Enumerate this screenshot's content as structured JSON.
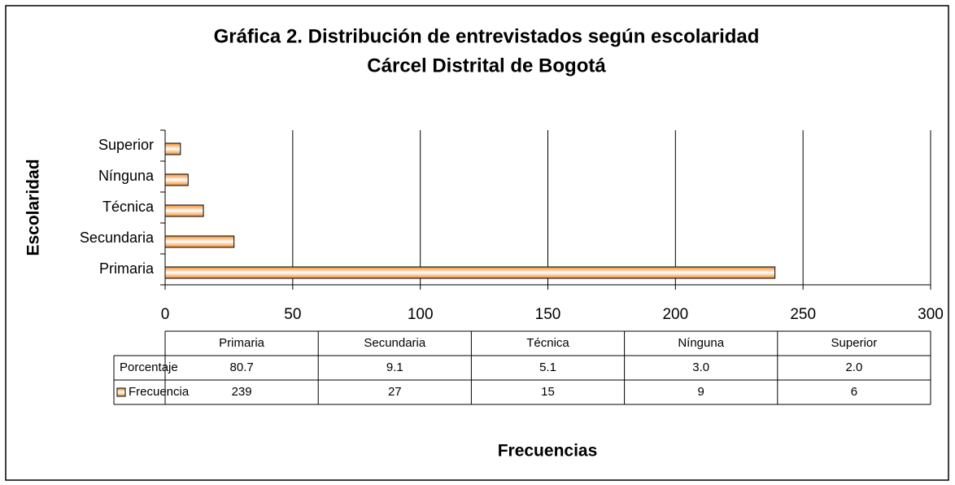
{
  "chart_data": {
    "type": "bar",
    "orientation": "horizontal",
    "title": "Gráfica 2. Distribución de entrevistados según escolaridad",
    "subtitle": "Cárcel Distrital de Bogotá",
    "y_label": "Escolaridad",
    "x_label": "Frecuencias",
    "categories": [
      "Primaria",
      "Secundaria",
      "Técnica",
      "Nínguna",
      "Superior"
    ],
    "series": [
      {
        "name": "Frecuencia",
        "color": "#f28c28",
        "values": [
          239,
          27,
          15,
          9,
          6
        ]
      }
    ],
    "data_table": {
      "rows": [
        {
          "name": "Porcentaje",
          "values": [
            80.7,
            9.1,
            5.1,
            3.0,
            2.0
          ],
          "value_labels": [
            "80.7",
            "9.1",
            "5.1",
            "3.0",
            "2.0"
          ]
        }
      ]
    },
    "xlim": [
      0,
      300
    ],
    "xticks": [
      0,
      50,
      100,
      150,
      200,
      250,
      300
    ],
    "grid": true
  }
}
